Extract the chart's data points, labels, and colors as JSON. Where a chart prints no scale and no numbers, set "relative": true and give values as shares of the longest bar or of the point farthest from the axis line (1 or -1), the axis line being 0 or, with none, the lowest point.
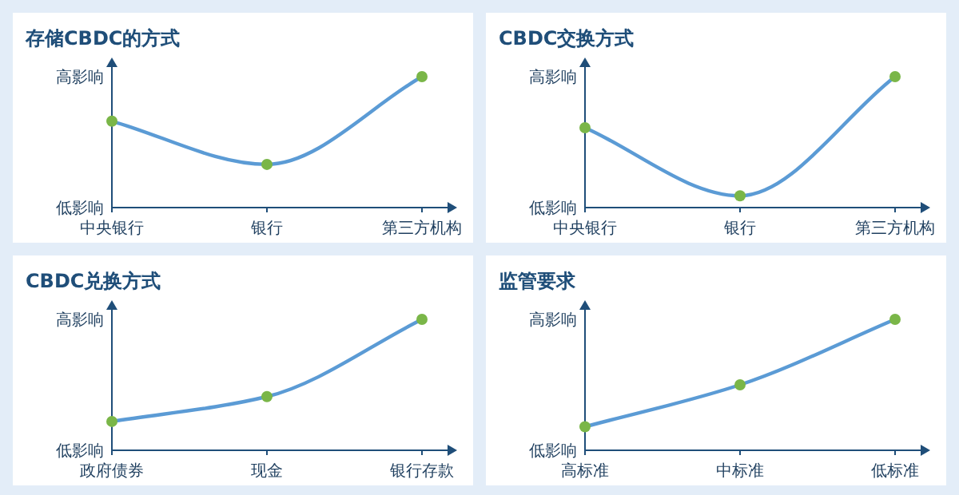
{
  "chart_data": [
    {
      "type": "line",
      "title": "存储CBDC的方式",
      "categories": [
        "中央银行",
        "银行",
        "第三方机构"
      ],
      "relative": true,
      "marker": "circle",
      "annotations": [
        "高影响",
        "低影响"
      ],
      "series": [
        {
          "color": "#5b9bd5",
          "values": [
            0.66,
            0.33,
            1
          ]
        }
      ]
    },
    {
      "type": "line",
      "title": "CBDC交换方式",
      "categories": [
        "中央银行",
        "银行",
        "第三方机构"
      ],
      "relative": true,
      "marker": "circle",
      "annotations": [
        "高影响",
        "低影响"
      ],
      "series": [
        {
          "color": "#5b9bd5",
          "values": [
            0.61,
            0.09,
            1
          ]
        }
      ]
    },
    {
      "type": "line",
      "title": "CBDC兑换方式",
      "categories": [
        "政府债券",
        "现金",
        "银行存款"
      ],
      "relative": true,
      "marker": "circle",
      "annotations": [
        "高影响",
        "低影响"
      ],
      "series": [
        {
          "color": "#5b9bd5",
          "values": [
            0.22,
            0.41,
            1
          ]
        }
      ]
    },
    {
      "type": "line",
      "title": "监管要求",
      "categories": [
        "高标准",
        "中标准",
        "低标准"
      ],
      "relative": true,
      "marker": "circle",
      "annotations": [
        "高影响",
        "低影响"
      ],
      "series": [
        {
          "color": "#5b9bd5",
          "values": [
            0.18,
            0.5,
            1
          ]
        }
      ]
    }
  ]
}
